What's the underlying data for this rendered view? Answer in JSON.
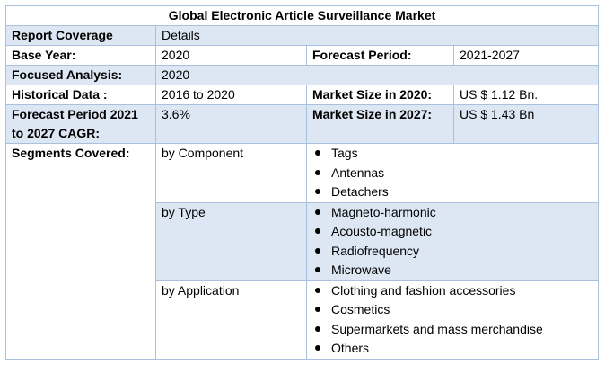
{
  "title": "Global Electronic Article Surveillance Market",
  "rows": {
    "report_coverage": {
      "label": "Report Coverage",
      "value": "Details"
    },
    "base_year": {
      "label": "Base Year:",
      "value": "2020",
      "label2": "Forecast Period:",
      "value2": "2021-2027"
    },
    "focused_analysis": {
      "label": "Focused Analysis:",
      "value": "2020"
    },
    "historical_data": {
      "label": "Historical Data :",
      "value": "2016 to 2020",
      "label2": "Market Size in 2020:",
      "value2": "US $ 1.12 Bn."
    },
    "forecast_cagr": {
      "label": "Forecast Period 2021 to 2027 CAGR:",
      "value": "3.6%",
      "label2": "Market Size in 2027:",
      "value2": "US $ 1.43 Bn"
    }
  },
  "segments": {
    "label": "Segments Covered:",
    "groups": [
      {
        "name": "by Component",
        "items": [
          "Tags",
          "Antennas",
          "Detachers"
        ]
      },
      {
        "name": "by Type",
        "items": [
          "Magneto-harmonic",
          "Acousto-magnetic",
          "Radiofrequency",
          "Microwave"
        ]
      },
      {
        "name": "by Application",
        "items": [
          "Clothing and fashion accessories",
          "Cosmetics",
          "Supermarkets and mass merchandise",
          "Others"
        ]
      }
    ]
  },
  "colors": {
    "shade": "#dde7f3",
    "border": "#a9c1dc"
  }
}
